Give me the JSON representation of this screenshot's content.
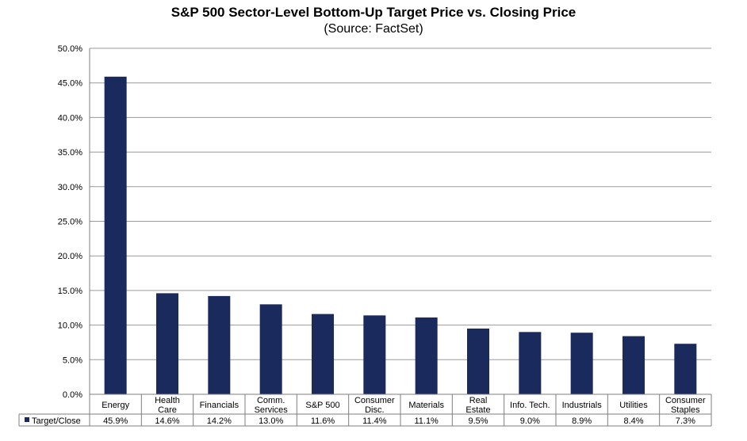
{
  "chart_data": {
    "type": "bar",
    "title": "S&P 500 Sector-Level Bottom-Up Target Price vs. Closing Price",
    "subtitle": "(Source: FactSet)",
    "categories": [
      [
        "Energy"
      ],
      [
        "Health",
        "Care"
      ],
      [
        "Financials"
      ],
      [
        "Comm.",
        "Services"
      ],
      [
        "S&P 500"
      ],
      [
        "Consumer",
        "Disc."
      ],
      [
        "Materials"
      ],
      [
        "Real",
        "Estate"
      ],
      [
        "Info. Tech."
      ],
      [
        "Industrials"
      ],
      [
        "Utilities"
      ],
      [
        "Consumer",
        "Staples"
      ]
    ],
    "series": [
      {
        "name": "Target/Close",
        "values": [
          45.9,
          14.6,
          14.2,
          13.0,
          11.6,
          11.4,
          11.1,
          9.5,
          9.0,
          8.9,
          8.4,
          7.3
        ],
        "labels": [
          "45.9%",
          "14.6%",
          "14.2%",
          "13.0%",
          "11.6%",
          "11.4%",
          "11.1%",
          "9.5%",
          "9.0%",
          "8.9%",
          "8.4%",
          "7.3%"
        ],
        "color": "#1b2a5c"
      }
    ],
    "yticks": [
      "0.0%",
      "5.0%",
      "10.0%",
      "15.0%",
      "20.0%",
      "25.0%",
      "30.0%",
      "35.0%",
      "40.0%",
      "45.0%",
      "50.0%"
    ],
    "ylim": [
      0,
      50
    ],
    "grid": true,
    "legend": "data-table-left",
    "data_table": true
  }
}
